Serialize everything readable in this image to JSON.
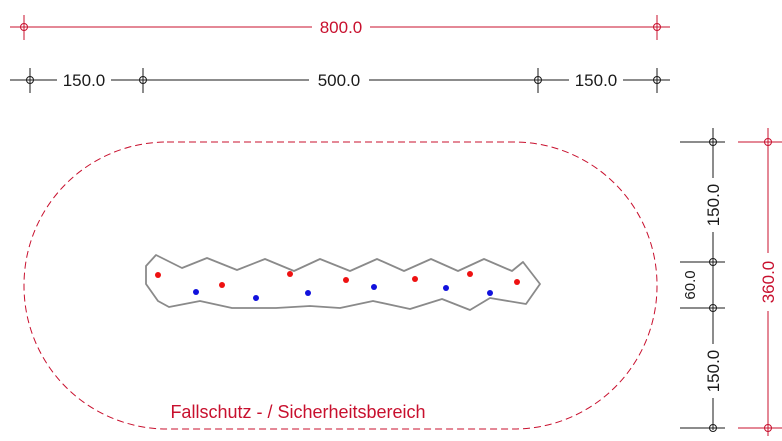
{
  "dimensions": {
    "overall_width": "800.0",
    "left_segment": "150.0",
    "middle_segment": "500.0",
    "right_segment": "150.0",
    "overall_height": "360.0",
    "top_clearance": "150.0",
    "body_depth": "60.0",
    "bottom_clearance": "150.0"
  },
  "zone_label": "Fallschutz - / Sicherheitsbereich",
  "colors": {
    "red": "#c8102e",
    "dimension_black": "#1a1a1a",
    "outline_gray": "#8a8a8a",
    "grip_red": "#ee1111",
    "grip_blue": "#1111dd"
  }
}
